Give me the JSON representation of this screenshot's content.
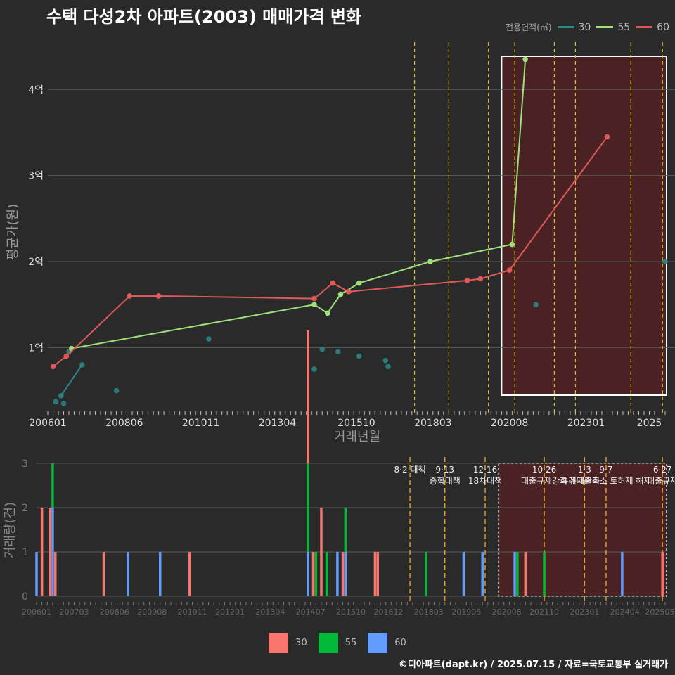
{
  "title": "수택 다성2차 아파트(2003) 매매가격 변화",
  "credit": "©디아파트(dapt.kr) / 2025.07.15 / 자료=국토교통부 실거래가",
  "legend_top": {
    "title": "전용면적(㎡)",
    "items": [
      {
        "label": "30",
        "color": "#2a8a8a"
      },
      {
        "label": "55",
        "color": "#9ee07a"
      },
      {
        "label": "60",
        "color": "#e05a5a"
      }
    ]
  },
  "legend_bottom": {
    "items": [
      {
        "label": "30",
        "color": "#f8766d"
      },
      {
        "label": "55",
        "color": "#00ba38"
      },
      {
        "label": "60",
        "color": "#619cff"
      }
    ]
  },
  "chart_data": [
    {
      "type": "line",
      "xlabel": "거래년월",
      "ylabel": "평균가(원)",
      "xlim": [
        "2006-01",
        "2025-07"
      ],
      "ylim_won": [
        3000,
        45500
      ],
      "y_ticks": [
        {
          "value": 10000,
          "label": "1억"
        },
        {
          "value": 20000,
          "label": "2억"
        },
        {
          "value": 30000,
          "label": "3억"
        },
        {
          "value": 40000,
          "label": "4억"
        }
      ],
      "x_tick_labels": [
        "200601",
        "200806",
        "201011",
        "201304",
        "201510",
        "201803",
        "202008",
        "202301",
        "2025"
      ],
      "policy_lines": [
        "2017-08",
        "2018-09",
        "2019-12",
        "2020-10",
        "2022-01",
        "2022-09",
        "2024-06",
        "2025-06"
      ],
      "highlight_range": [
        "2020-05",
        "2025-07"
      ],
      "series": [
        {
          "name": "30",
          "color": "#2a8a8a",
          "x": [
            "2006-04",
            "2006-06",
            "2006-07",
            "2006-09",
            "2007-02",
            "2008-03",
            "2011-02",
            "2014-06",
            "2014-09",
            "2015-03",
            "2015-11",
            "2016-09",
            "2016-10",
            "2021-06",
            "2025-07"
          ],
          "y": [
            3700,
            4400,
            3500,
            9500,
            8000,
            5000,
            11000,
            7500,
            9800,
            9500,
            9000,
            8500,
            7800,
            15000,
            20000
          ]
        },
        {
          "name": "55",
          "color": "#9ee07a",
          "x": [
            "2006-10",
            "2014-06",
            "2014-11",
            "2015-04",
            "2015-11",
            "2018-02",
            "2020-09",
            "2021-02"
          ],
          "y": [
            9900,
            15000,
            14000,
            16200,
            17500,
            20000,
            22000,
            43500
          ]
        },
        {
          "name": "60",
          "color": "#e05a5a",
          "x": [
            "2006-03",
            "2006-08",
            "2008-08",
            "2009-07",
            "2014-06",
            "2015-01",
            "2015-07",
            "2019-04",
            "2019-09",
            "2020-08",
            "2023-09"
          ],
          "y": [
            7800,
            9000,
            16000,
            16000,
            15700,
            17500,
            16500,
            17800,
            18000,
            19000,
            34500
          ]
        }
      ]
    },
    {
      "type": "bar",
      "xlabel": "",
      "ylabel": "거래량(건)",
      "ylim": [
        0,
        3
      ],
      "y_ticks": [
        "0",
        "1",
        "2",
        "3"
      ],
      "x_tick_labels": [
        "200601",
        "200703",
        "200806",
        "200908",
        "201011",
        "201201",
        "201304",
        "201407",
        "201510",
        "201612",
        "201803",
        "201905",
        "202008",
        "202110",
        "202301",
        "202404",
        "202505"
      ],
      "highlight_range": [
        "2020-05",
        "2025-07"
      ],
      "series": [
        {
          "name": "30",
          "color": "#f8766d",
          "x": [
            "2006-03",
            "2006-06",
            "2006-08",
            "2008-02",
            "2010-10",
            "2014-06",
            "2014-08",
            "2014-11",
            "2015-07",
            "2016-07",
            "2016-08",
            "2021-03",
            "2025-06"
          ],
          "y": [
            2,
            2,
            1,
            1,
            1,
            3,
            1,
            2,
            1,
            1,
            1,
            1,
            1
          ]
        },
        {
          "name": "55",
          "color": "#00ba38",
          "x": [
            "2006-07",
            "2014-06",
            "2014-09",
            "2015-01",
            "2015-08",
            "2018-02",
            "2020-12",
            "2021-10"
          ],
          "y": [
            1,
            2,
            1,
            1,
            1,
            1,
            1,
            1
          ]
        },
        {
          "name": "60",
          "color": "#619cff",
          "x": [
            "2006-01",
            "2006-07",
            "2008-11",
            "2009-11",
            "2014-06",
            "2015-05",
            "2015-08",
            "2019-04",
            "2019-11",
            "2020-11",
            "2024-03"
          ],
          "y": [
            1,
            2,
            1,
            1,
            1,
            1,
            1,
            1,
            1,
            1,
            1
          ]
        }
      ],
      "annotations": [
        {
          "x": "2017-08",
          "lines": [
            "8·2 대책"
          ]
        },
        {
          "x": "2018-09",
          "lines": [
            "9·13",
            "종합대책"
          ]
        },
        {
          "x": "2019-12",
          "lines": [
            "12·16",
            "18차대책"
          ]
        },
        {
          "x": "2021-10",
          "lines": [
            "10·26",
            "대출규제강화"
          ]
        },
        {
          "x": "2023-01",
          "lines": [
            "1·3",
            "규제완화"
          ]
        },
        {
          "x": "2023-09",
          "lines": [
            "9·7",
            "특례대출축소 토허제 해제"
          ]
        },
        {
          "x": "2025-06",
          "lines": [
            "6·27",
            "대출규제"
          ]
        }
      ]
    }
  ]
}
